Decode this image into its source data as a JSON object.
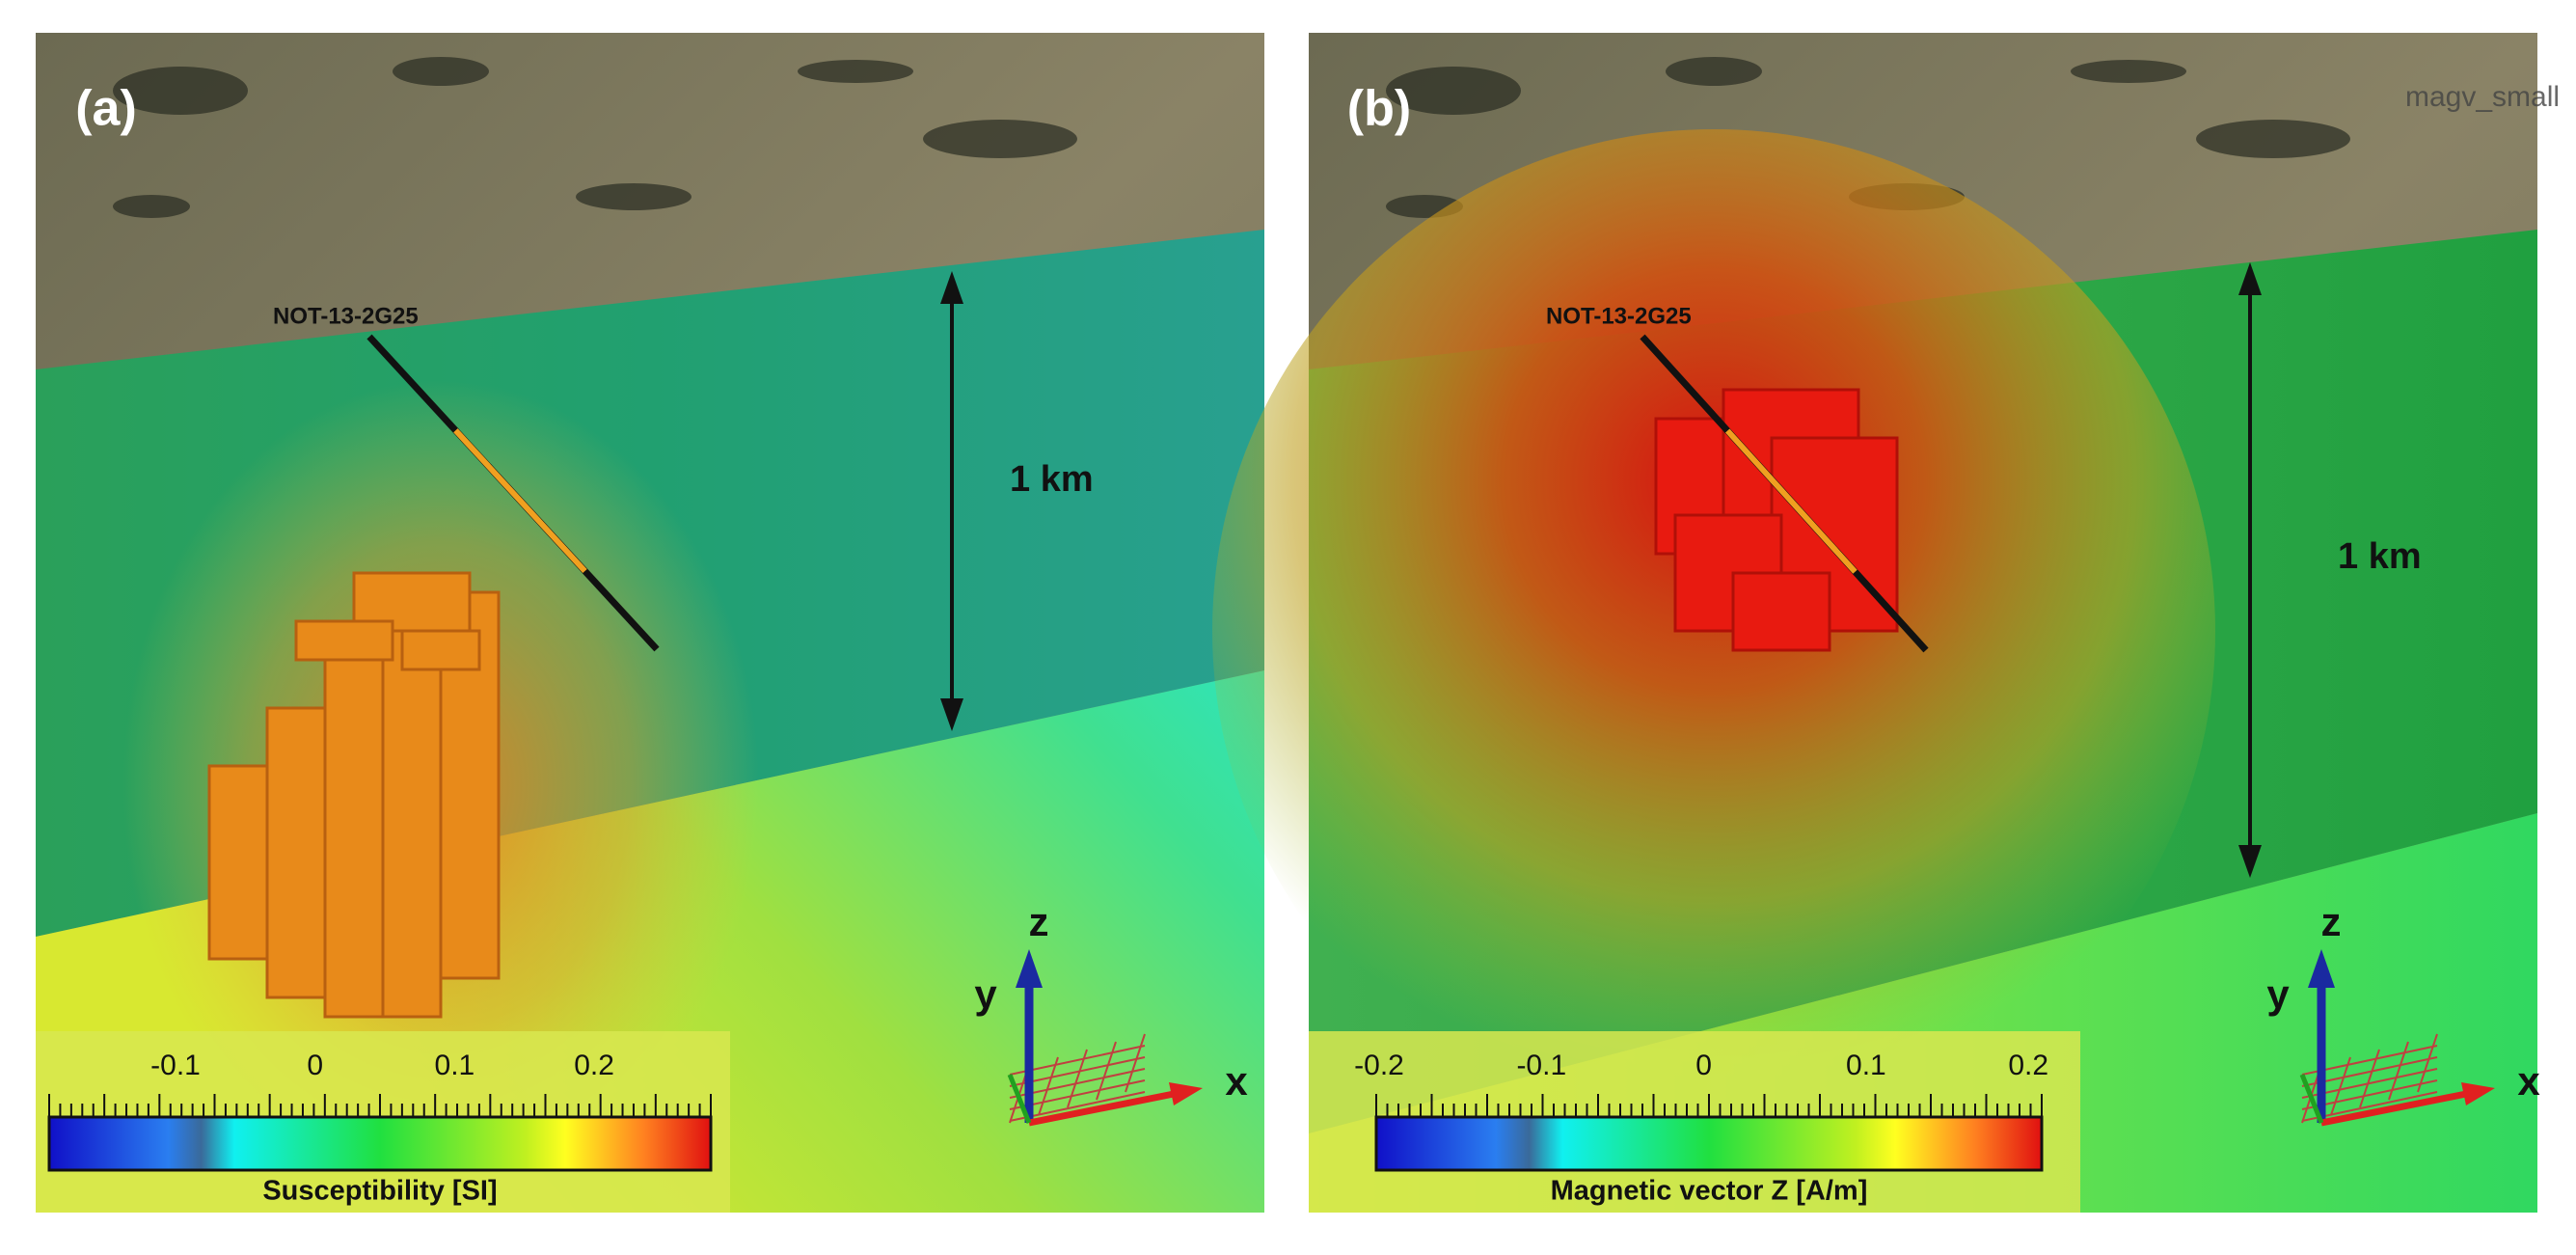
{
  "panels": [
    {
      "label": "(a)",
      "well": "NOT-13-2G25",
      "scale": "1 km",
      "colorbar": {
        "title": "Susceptibility [SI]",
        "ticks": [
          "-0.1",
          "0",
          "0.1",
          "0.2"
        ]
      },
      "axes": {
        "x": "x",
        "y": "y",
        "z": "z"
      }
    },
    {
      "label": "(b)",
      "watermark": "magv_small",
      "well": "NOT-13-2G25",
      "scale": "1 km",
      "colorbar": {
        "title": "Magnetic vector Z [A/m]",
        "ticks": [
          "-0.2",
          "-0.1",
          "0",
          "0.1",
          "0.2"
        ]
      },
      "axes": {
        "x": "x",
        "y": "y",
        "z": "z"
      }
    }
  ]
}
